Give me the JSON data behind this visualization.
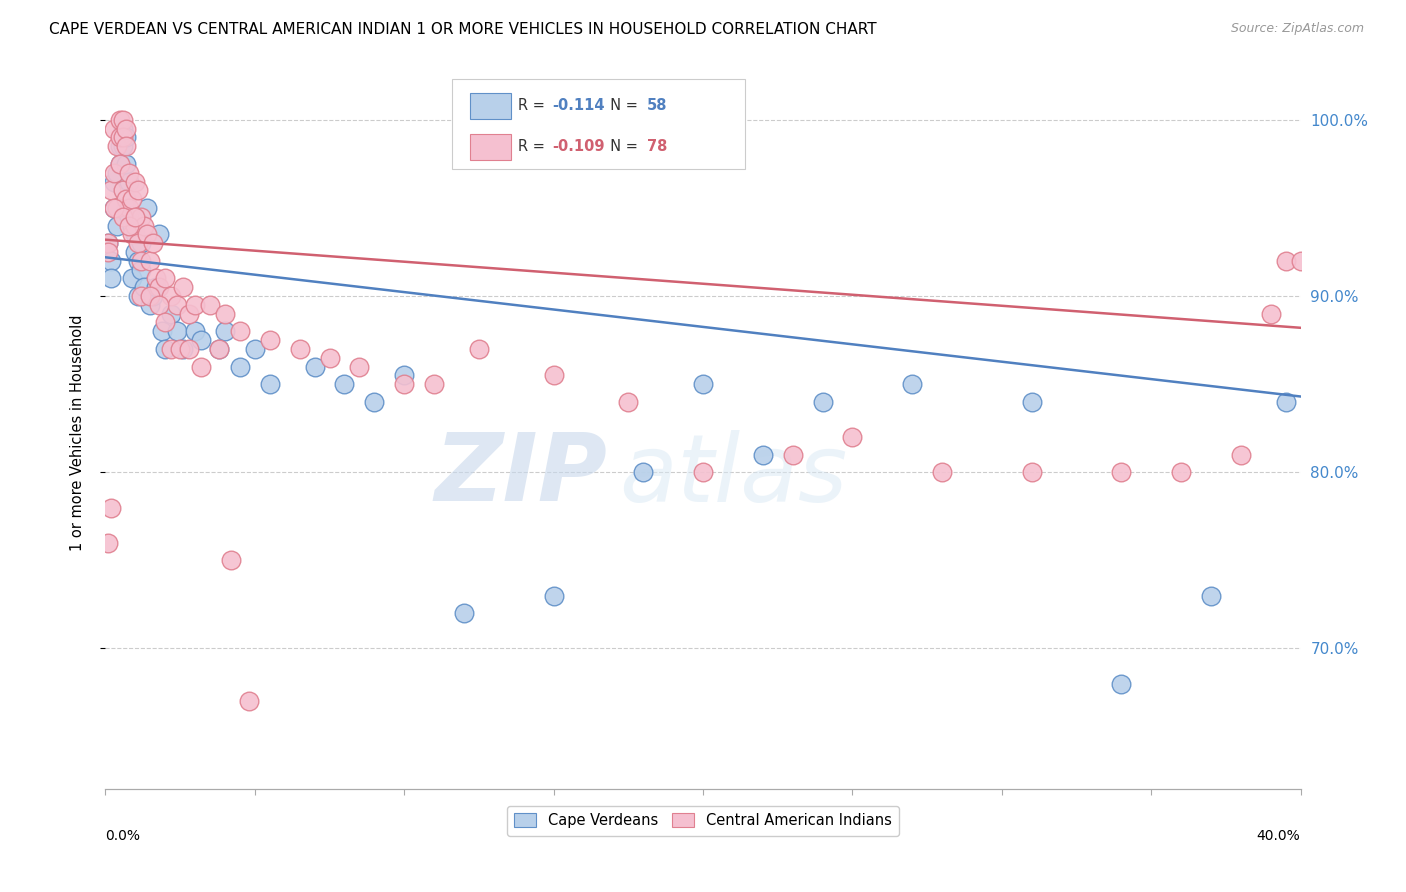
{
  "title": "CAPE VERDEAN VS CENTRAL AMERICAN INDIAN 1 OR MORE VEHICLES IN HOUSEHOLD CORRELATION CHART",
  "source": "Source: ZipAtlas.com",
  "ylabel": "1 or more Vehicles in Household",
  "xmin": 0.0,
  "xmax": 0.4,
  "ymin": 0.62,
  "ymax": 1.025,
  "yticks": [
    0.7,
    0.8,
    0.9,
    1.0
  ],
  "ytick_labels": [
    "70.0%",
    "80.0%",
    "90.0%",
    "100.0%"
  ],
  "r_blue": -0.114,
  "n_blue": 58,
  "r_pink": -0.109,
  "n_pink": 78,
  "legend_label_blue": "Cape Verdeans",
  "legend_label_pink": "Central American Indians",
  "blue_color": "#b8d0ea",
  "blue_edge_color": "#6090c8",
  "blue_line_color": "#5080c0",
  "pink_color": "#f5c0d0",
  "pink_edge_color": "#e08090",
  "pink_line_color": "#d06070",
  "watermark_zip": "ZIP",
  "watermark_atlas": "atlas",
  "blue_points_x": [
    0.001,
    0.002,
    0.002,
    0.003,
    0.003,
    0.004,
    0.004,
    0.005,
    0.005,
    0.006,
    0.006,
    0.006,
    0.007,
    0.007,
    0.007,
    0.008,
    0.008,
    0.009,
    0.009,
    0.01,
    0.01,
    0.011,
    0.011,
    0.012,
    0.012,
    0.013,
    0.014,
    0.015,
    0.016,
    0.017,
    0.018,
    0.019,
    0.02,
    0.022,
    0.024,
    0.026,
    0.03,
    0.032,
    0.038,
    0.04,
    0.045,
    0.05,
    0.055,
    0.07,
    0.08,
    0.09,
    0.1,
    0.12,
    0.15,
    0.18,
    0.2,
    0.22,
    0.24,
    0.27,
    0.31,
    0.34,
    0.37,
    0.395
  ],
  "blue_points_y": [
    0.93,
    0.92,
    0.91,
    0.965,
    0.95,
    0.97,
    0.94,
    0.985,
    0.975,
    0.995,
    0.985,
    0.96,
    0.99,
    0.975,
    0.95,
    0.965,
    0.945,
    0.94,
    0.91,
    0.935,
    0.925,
    0.92,
    0.9,
    0.93,
    0.915,
    0.905,
    0.95,
    0.895,
    0.9,
    0.905,
    0.935,
    0.88,
    0.87,
    0.89,
    0.88,
    0.87,
    0.88,
    0.875,
    0.87,
    0.88,
    0.86,
    0.87,
    0.85,
    0.86,
    0.85,
    0.84,
    0.855,
    0.72,
    0.73,
    0.8,
    0.85,
    0.81,
    0.84,
    0.85,
    0.84,
    0.68,
    0.73,
    0.84
  ],
  "pink_points_x": [
    0.001,
    0.001,
    0.002,
    0.002,
    0.003,
    0.003,
    0.004,
    0.004,
    0.005,
    0.005,
    0.005,
    0.006,
    0.006,
    0.006,
    0.007,
    0.007,
    0.007,
    0.008,
    0.008,
    0.009,
    0.009,
    0.01,
    0.01,
    0.011,
    0.011,
    0.012,
    0.012,
    0.013,
    0.014,
    0.015,
    0.016,
    0.017,
    0.018,
    0.02,
    0.022,
    0.024,
    0.026,
    0.028,
    0.03,
    0.035,
    0.04,
    0.045,
    0.055,
    0.065,
    0.075,
    0.085,
    0.1,
    0.11,
    0.125,
    0.15,
    0.175,
    0.2,
    0.23,
    0.25,
    0.28,
    0.31,
    0.34,
    0.36,
    0.38,
    0.39,
    0.395,
    0.4,
    0.001,
    0.003,
    0.006,
    0.008,
    0.01,
    0.012,
    0.015,
    0.018,
    0.02,
    0.022,
    0.025,
    0.028,
    0.032,
    0.038,
    0.042,
    0.048
  ],
  "pink_points_y": [
    0.93,
    0.76,
    0.96,
    0.78,
    0.995,
    0.97,
    0.985,
    0.95,
    1.0,
    0.99,
    0.975,
    1.0,
    0.99,
    0.96,
    0.995,
    0.985,
    0.955,
    0.97,
    0.95,
    0.955,
    0.935,
    0.965,
    0.94,
    0.96,
    0.93,
    0.945,
    0.92,
    0.94,
    0.935,
    0.92,
    0.93,
    0.91,
    0.905,
    0.91,
    0.9,
    0.895,
    0.905,
    0.89,
    0.895,
    0.895,
    0.89,
    0.88,
    0.875,
    0.87,
    0.865,
    0.86,
    0.85,
    0.85,
    0.87,
    0.855,
    0.84,
    0.8,
    0.81,
    0.82,
    0.8,
    0.8,
    0.8,
    0.8,
    0.81,
    0.89,
    0.92,
    0.92,
    0.925,
    0.95,
    0.945,
    0.94,
    0.945,
    0.9,
    0.9,
    0.895,
    0.885,
    0.87,
    0.87,
    0.87,
    0.86,
    0.87,
    0.75,
    0.67
  ]
}
